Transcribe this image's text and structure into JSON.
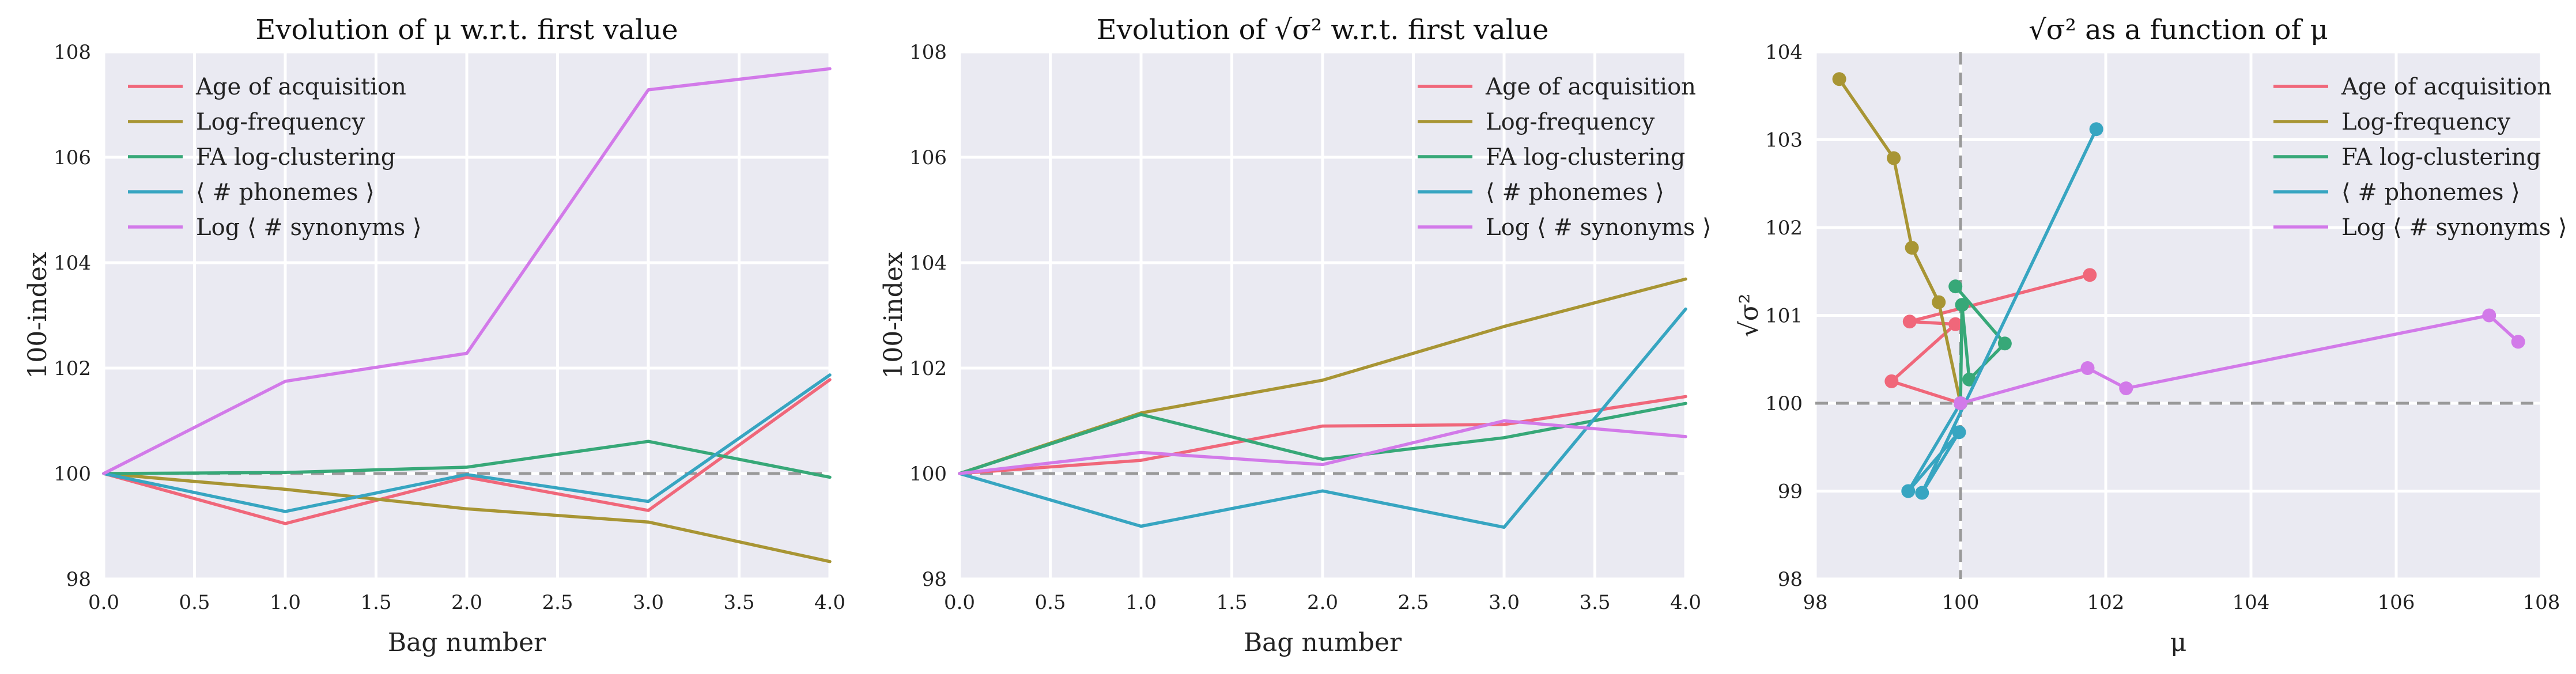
{
  "figure": {
    "colors": {
      "age": "#f0677a",
      "logfreq": "#a89534",
      "fa": "#37a878",
      "phon": "#37a5c1",
      "syn": "#d27ae9",
      "ref": "#999999",
      "panel": "#eaeaf2"
    }
  },
  "chart_data": [
    {
      "type": "line",
      "title": "Evolution of μ w.r.t. first value",
      "xlabel": "Bag number",
      "ylabel": "100-index",
      "xlim": [
        0.0,
        4.0
      ],
      "ylim": [
        98,
        108
      ],
      "xticks": [
        "0.0",
        "0.5",
        "1.0",
        "1.5",
        "2.0",
        "2.5",
        "3.0",
        "3.5",
        "4.0"
      ],
      "yticks": [
        "98",
        "100",
        "102",
        "104",
        "106",
        "108"
      ],
      "reference_y": 100,
      "legend_position": "top-left",
      "grid": true,
      "x": [
        0,
        1,
        2,
        3,
        4
      ],
      "series": [
        {
          "name": "Age of acquisition",
          "color": "#f0677a",
          "values": [
            100.0,
            99.05,
            99.93,
            99.3,
            101.78
          ]
        },
        {
          "name": "Log-frequency",
          "color": "#a89534",
          "values": [
            100.0,
            99.7,
            99.33,
            99.08,
            98.33
          ]
        },
        {
          "name": "FA log-clustering",
          "color": "#37a878",
          "values": [
            100.0,
            100.02,
            100.12,
            100.61,
            99.93
          ]
        },
        {
          "name": "⟨ # phonemes ⟩",
          "color": "#37a5c1",
          "values": [
            100.0,
            99.28,
            99.98,
            99.47,
            101.87
          ]
        },
        {
          "name": "Log ⟨ # synonyms ⟩",
          "color": "#d27ae9",
          "values": [
            100.0,
            101.75,
            102.28,
            107.28,
            107.68
          ]
        }
      ]
    },
    {
      "type": "line",
      "title": "Evolution of √σ² w.r.t. first value",
      "xlabel": "Bag number",
      "ylabel": "100-index",
      "xlim": [
        0.0,
        4.0
      ],
      "ylim": [
        98,
        108
      ],
      "xticks": [
        "0.0",
        "0.5",
        "1.0",
        "1.5",
        "2.0",
        "2.5",
        "3.0",
        "3.5",
        "4.0"
      ],
      "yticks": [
        "98",
        "100",
        "102",
        "104",
        "106",
        "108"
      ],
      "reference_y": 100,
      "legend_position": "top-right",
      "grid": true,
      "x": [
        0,
        1,
        2,
        3,
        4
      ],
      "series": [
        {
          "name": "Age of acquisition",
          "color": "#f0677a",
          "values": [
            100.0,
            100.25,
            100.9,
            100.93,
            101.46
          ]
        },
        {
          "name": "Log-frequency",
          "color": "#a89534",
          "values": [
            100.0,
            101.15,
            101.77,
            102.79,
            103.69
          ]
        },
        {
          "name": "FA log-clustering",
          "color": "#37a878",
          "values": [
            100.0,
            101.12,
            100.27,
            100.68,
            101.33
          ]
        },
        {
          "name": "⟨ # phonemes ⟩",
          "color": "#37a5c1",
          "values": [
            100.0,
            99.0,
            99.67,
            98.98,
            103.12
          ]
        },
        {
          "name": "Log ⟨ # synonyms ⟩",
          "color": "#d27ae9",
          "values": [
            100.0,
            100.4,
            100.17,
            101.0,
            100.7
          ]
        }
      ]
    },
    {
      "type": "scatter",
      "title": "√σ² as a function of μ",
      "xlabel": "μ",
      "ylabel": "√σ²",
      "xlim": [
        98,
        108
      ],
      "ylim": [
        98,
        104
      ],
      "xticks": [
        "98",
        "100",
        "102",
        "104",
        "106",
        "108"
      ],
      "yticks": [
        "98",
        "99",
        "100",
        "101",
        "102",
        "103",
        "104"
      ],
      "reference_x": 100,
      "reference_y": 100,
      "legend_position": "top-right",
      "grid": true,
      "connected": true,
      "series": [
        {
          "name": "Age of acquisition",
          "color": "#f0677a",
          "points": [
            [
              100.0,
              100.0
            ],
            [
              99.05,
              100.25
            ],
            [
              99.93,
              100.9
            ],
            [
              99.3,
              100.93
            ],
            [
              101.78,
              101.46
            ]
          ]
        },
        {
          "name": "Log-frequency",
          "color": "#a89534",
          "points": [
            [
              100.0,
              100.0
            ],
            [
              99.7,
              101.15
            ],
            [
              99.33,
              101.77
            ],
            [
              99.08,
              102.79
            ],
            [
              98.33,
              103.69
            ]
          ]
        },
        {
          "name": "FA log-clustering",
          "color": "#37a878",
          "points": [
            [
              100.0,
              100.0
            ],
            [
              100.02,
              101.12
            ],
            [
              100.12,
              100.27
            ],
            [
              100.61,
              100.68
            ],
            [
              99.93,
              101.33
            ]
          ]
        },
        {
          "name": "⟨ # phonemes ⟩",
          "color": "#37a5c1",
          "points": [
            [
              100.0,
              100.0
            ],
            [
              99.28,
              99.0
            ],
            [
              99.98,
              99.67
            ],
            [
              99.47,
              98.98
            ],
            [
              101.87,
              103.12
            ]
          ]
        },
        {
          "name": "Log ⟨ # synonyms ⟩",
          "color": "#d27ae9",
          "points": [
            [
              100.0,
              100.0
            ],
            [
              101.75,
              100.4
            ],
            [
              102.28,
              100.17
            ],
            [
              107.28,
              101.0
            ],
            [
              107.68,
              100.7
            ]
          ]
        }
      ]
    }
  ]
}
